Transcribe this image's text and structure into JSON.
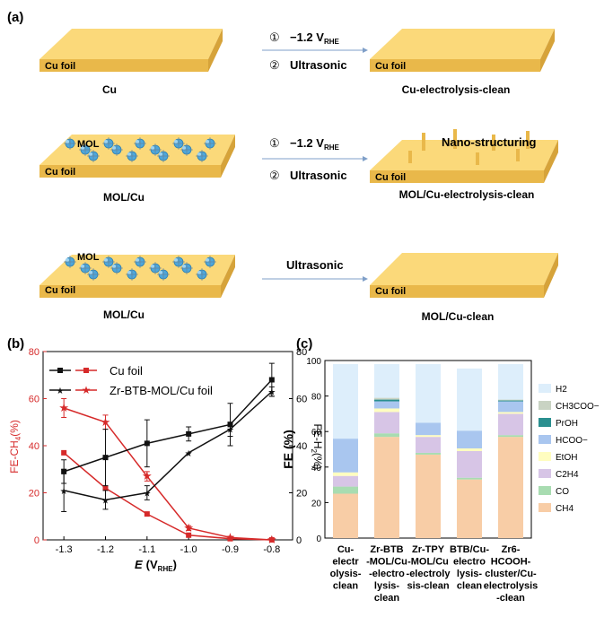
{
  "panel_a": {
    "label": "(a)",
    "rows": [
      {
        "left_foil": "Cu foil",
        "left_caption": "Cu",
        "step1_num": "①",
        "step1_text": "−1.2 V",
        "step1_sub": "RHE",
        "step2_num": "②",
        "step2_text": "Ultrasonic",
        "right_foil": "Cu foil",
        "right_caption": "Cu-electrolysis-clean"
      },
      {
        "left_foil": "Cu foil",
        "left_mol": "MOL",
        "left_caption": "MOL/Cu",
        "step1_num": "①",
        "step1_text": "−1.2 V",
        "step1_sub": "RHE",
        "step2_num": "②",
        "step2_text": "Ultrasonic",
        "right_foil": "Cu foil",
        "right_note": "Nano-structuring",
        "right_caption": "MOL/Cu-electrolysis-clean"
      },
      {
        "left_foil": "Cu foil",
        "left_mol": "MOL",
        "left_caption": "MOL/Cu",
        "step_text": "Ultrasonic",
        "right_foil": "Cu foil",
        "right_caption": "MOL/Cu-clean"
      }
    ],
    "colors": {
      "foil_top": "#fbd97a",
      "foil_front": "#e9b84a",
      "foil_side": "#d6a33a",
      "arrow": "#7f9fc8",
      "mol": "#4ea7db"
    }
  },
  "chart_data": [
    {
      "panel": "(b)",
      "type": "line",
      "x": [
        -1.3,
        -1.2,
        -1.1,
        -1.0,
        -0.9,
        -0.8
      ],
      "xlim": [
        -1.35,
        -0.75
      ],
      "xticks": [
        "-1.3",
        "-1.2",
        "-1.1",
        "-1.0",
        "-0.9",
        "-0.8"
      ],
      "xlabel_main": "E",
      "xlabel_unit": "(V",
      "xlabel_sub": "RHE",
      "xlabel_close": ")",
      "ylabel_left": "FE-CH",
      "ylabel_left_sub": "4",
      "ylabel_left_unit": "(%)",
      "ylabel_right": "FE-H",
      "ylabel_right_sub": "2",
      "ylabel_right_unit": "(%)",
      "ylim_left": [
        0,
        80
      ],
      "ylim_right": [
        0,
        80
      ],
      "yticks_left": [
        "0",
        "20",
        "40",
        "60",
        "80"
      ],
      "yticks_right": [
        "0",
        "20",
        "40",
        "60",
        "80"
      ],
      "legend": [
        "Cu foil",
        "Zr-BTB-MOL/Cu foil"
      ],
      "series": [
        {
          "name": "Cu foil",
          "axis": "left",
          "color": "#d62a2a",
          "marker": "square",
          "values": [
            37,
            22,
            11,
            2,
            0.5,
            0
          ]
        },
        {
          "name": "Zr-BTB-MOL/Cu foil",
          "axis": "left",
          "color": "#d62a2a",
          "marker": "star",
          "values": [
            56,
            50,
            27,
            5,
            1,
            0
          ],
          "err": [
            4,
            3,
            2,
            1,
            0.5,
            0
          ]
        },
        {
          "name": "Cu foil",
          "axis": "right",
          "color": "#111111",
          "marker": "square",
          "values": [
            29,
            35,
            41,
            45,
            49,
            68
          ],
          "err": [
            5,
            12,
            10,
            3,
            9,
            7
          ]
        },
        {
          "name": "Zr-BTB-MOL/Cu foil",
          "axis": "right",
          "color": "#111111",
          "marker": "star",
          "values": [
            21,
            17,
            20,
            37,
            47,
            63
          ],
          "err": [
            9,
            4,
            3,
            0,
            3,
            2
          ]
        }
      ]
    },
    {
      "panel": "(c)",
      "type": "bar",
      "stacked": true,
      "ylabel": "FE (%)",
      "ylim": [
        0,
        100
      ],
      "yticks": [
        "0",
        "20",
        "40",
        "60",
        "80",
        "100"
      ],
      "categories": [
        [
          "Cu-",
          "electr",
          "olysis-",
          "clean"
        ],
        [
          "Zr-BTB",
          "-MOL/Cu",
          "-electro",
          "lysis-",
          "clean"
        ],
        [
          "Zr-TPY",
          "-MOL/Cu",
          "-electroly",
          "sis-clean"
        ],
        [
          "BTB/Cu-",
          "electro",
          "lysis-",
          "clean"
        ],
        [
          "Zr6-",
          "HCOOH-",
          "cluster/Cu-",
          "electrolysis",
          "-clean"
        ]
      ],
      "legend": [
        "H2",
        "CH3COO−",
        "PrOH",
        "HCOO−",
        "EtOH",
        "C2H4",
        "CO",
        "CH4"
      ],
      "legend_colors": [
        "#ddeefb",
        "#c9d3c3",
        "#2a8f8f",
        "#a9c6ef",
        "#fffdc0",
        "#d7c5e6",
        "#a8dcb1",
        "#f8cda6"
      ],
      "series": [
        {
          "name": "CH4",
          "values": [
            25,
            57,
            47,
            33,
            57
          ]
        },
        {
          "name": "CO",
          "values": [
            4,
            2,
            1,
            1,
            1
          ]
        },
        {
          "name": "C2H4",
          "values": [
            6,
            12,
            9,
            15,
            12
          ]
        },
        {
          "name": "EtOH",
          "values": [
            2,
            2,
            1,
            1.5,
            1
          ]
        },
        {
          "name": "HCOO−",
          "values": [
            19,
            4,
            7,
            10,
            6
          ]
        },
        {
          "name": "PrOH",
          "values": [
            0,
            1,
            0,
            0,
            0.5
          ]
        },
        {
          "name": "CH3COO−",
          "values": [
            0,
            1,
            0,
            0,
            0.5
          ]
        },
        {
          "name": "H2",
          "values": [
            42,
            19,
            33,
            35,
            20
          ]
        }
      ]
    }
  ]
}
